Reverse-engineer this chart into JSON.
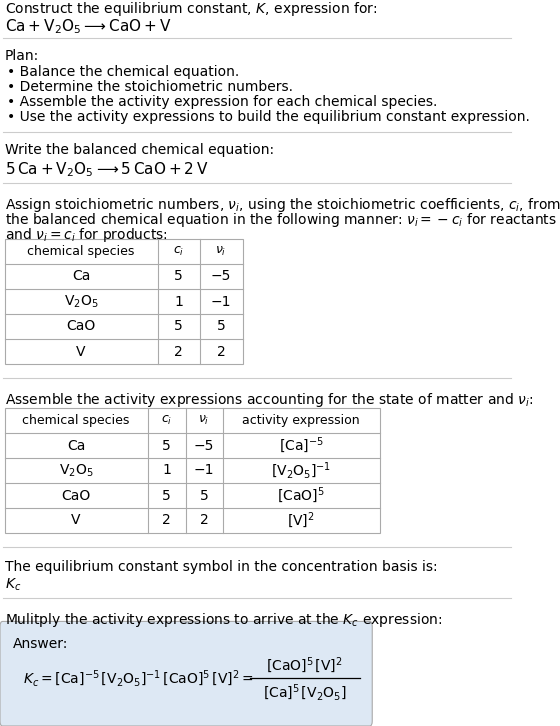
{
  "title_line1": "Construct the equilibrium constant, $K$, expression for:",
  "title_line2": "$\\mathrm{Ca + V_2O_5 \\longrightarrow CaO + V}$",
  "plan_header": "Plan:",
  "plan_items": [
    "• Balance the chemical equation.",
    "• Determine the stoichiometric numbers.",
    "• Assemble the activity expression for each chemical species.",
    "• Use the activity expressions to build the equilibrium constant expression."
  ],
  "balanced_header": "Write the balanced chemical equation:",
  "balanced_eq": "$\\mathrm{5\\,Ca + V_2O_5 \\longrightarrow 5\\,CaO + 2\\,V}$",
  "stoich_line1": "Assign stoichiometric numbers, $\\nu_i$, using the stoichiometric coefficients, $c_i$, from",
  "stoich_line2": "the balanced chemical equation in the following manner: $\\nu_i = -c_i$ for reactants",
  "stoich_line3": "and $\\nu_i = c_i$ for products:",
  "table1_headers": [
    "chemical species",
    "$c_i$",
    "$\\nu_i$"
  ],
  "table1_rows": [
    [
      "Ca",
      "5",
      "−5"
    ],
    [
      "$\\mathrm{V_2O_5}$",
      "1",
      "−1"
    ],
    [
      "CaO",
      "5",
      "5"
    ],
    [
      "V",
      "2",
      "2"
    ]
  ],
  "activity_intro": "Assemble the activity expressions accounting for the state of matter and $\\nu_i$:",
  "table2_headers": [
    "chemical species",
    "$c_i$",
    "$\\nu_i$",
    "activity expression"
  ],
  "table2_rows": [
    [
      "Ca",
      "5",
      "−5",
      "$[\\mathrm{Ca}]^{-5}$"
    ],
    [
      "$\\mathrm{V_2O_5}$",
      "1",
      "−1",
      "$[\\mathrm{V_2O_5}]^{-1}$"
    ],
    [
      "CaO",
      "5",
      "5",
      "$[\\mathrm{CaO}]^{5}$"
    ],
    [
      "V",
      "2",
      "2",
      "$[\\mathrm{V}]^{2}$"
    ]
  ],
  "kc_symbol_text": "The equilibrium constant symbol in the concentration basis is:",
  "kc_symbol": "$K_c$",
  "multiply_text": "Mulitply the activity expressions to arrive at the $K_c$ expression:",
  "answer_label": "Answer:",
  "kc_eq_left": "$K_c = [\\mathrm{Ca}]^{-5}\\,[\\mathrm{V_2O_5}]^{-1}\\,[\\mathrm{CaO}]^5\\,[\\mathrm{V}]^2 =$",
  "kc_frac_num": "$[\\mathrm{CaO}]^5\\,[\\mathrm{V}]^2$",
  "kc_frac_den": "$[\\mathrm{Ca}]^5\\,[\\mathrm{V_2O_5}]$",
  "bg_color": "#ffffff",
  "answer_box_color": "#dde8f4",
  "table_border_color": "#aaaaaa",
  "text_color": "#000000",
  "sep_color": "#cccccc",
  "font_size": 10,
  "small_font": 9
}
